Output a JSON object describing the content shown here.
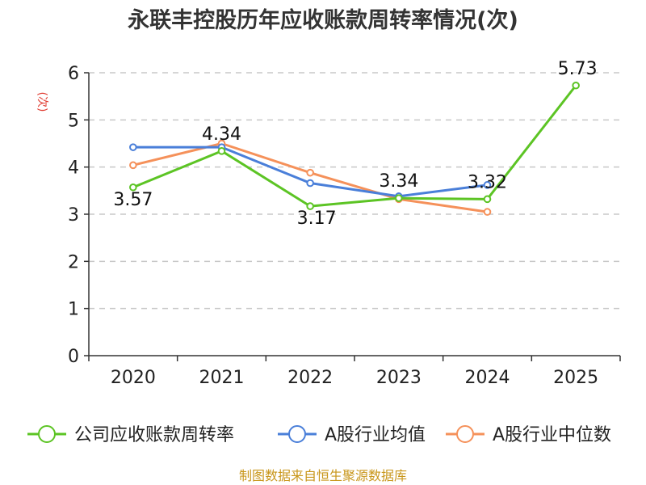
{
  "chart_data": {
    "type": "line",
    "title": "永联丰控股历年应收账款周转率情况(次)",
    "ylabel": "(次)",
    "xlabel": "",
    "categories": [
      "2020",
      "2021",
      "2022",
      "2023",
      "2024",
      "2025"
    ],
    "ylim": [
      0,
      6
    ],
    "yticks": [
      0,
      1,
      2,
      3,
      4,
      5,
      6
    ],
    "grid": true,
    "legend_position": "bottom",
    "series": [
      {
        "name": "公司应收账款周转率",
        "color": "#5cc424",
        "values": [
          3.57,
          4.34,
          3.17,
          3.34,
          3.32,
          5.73
        ],
        "labels": [
          "3.57",
          "4.34",
          "3.17",
          "3.34",
          "3.32",
          "5.73"
        ]
      },
      {
        "name": "A股行业均值",
        "color": "#4a7fd9",
        "values": [
          4.42,
          4.42,
          3.66,
          3.38,
          3.62,
          null
        ]
      },
      {
        "name": "A股行业中位数",
        "color": "#f5915a",
        "values": [
          4.04,
          4.5,
          3.88,
          3.32,
          3.05,
          null
        ]
      }
    ],
    "source": "制图数据来自恒生聚源数据库"
  }
}
